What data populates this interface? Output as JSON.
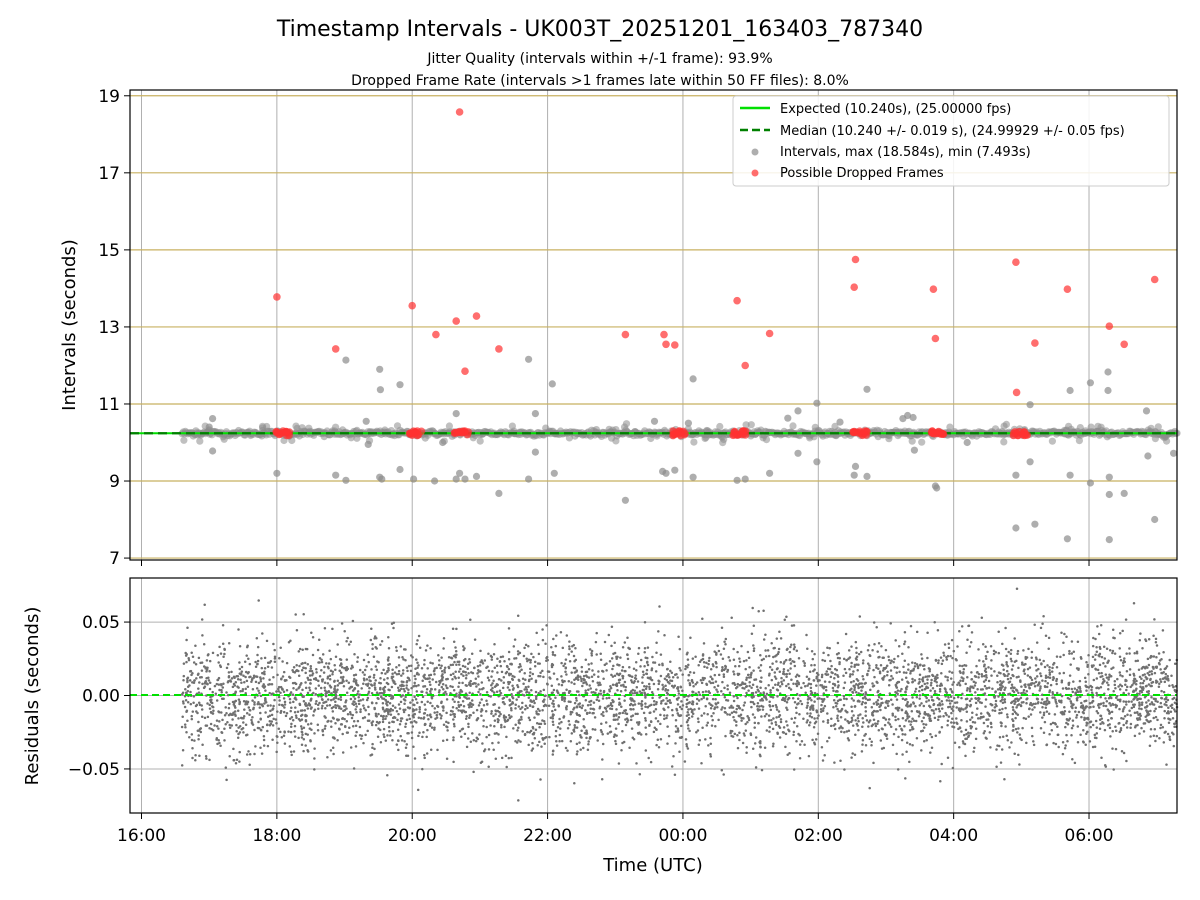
{
  "chart_data": [
    {
      "type": "scatter",
      "panel": "top",
      "title": "Timestamp Intervals - UK003T_20251201_163403_787340",
      "subtitle_lines": [
        "Jitter Quality (intervals within +/-1 frame): 93.9%",
        "Dropped Frame Rate (intervals >1 frames late within 50 FF files): 8.0%"
      ],
      "xlabel": "",
      "ylabel": "Intervals (seconds)",
      "xlim_hours": [
        15.83,
        31.3
      ],
      "ylim": [
        6.95,
        19.15
      ],
      "yticks": [
        7,
        9,
        11,
        13,
        15,
        17,
        19
      ],
      "ytick_labels": [
        "7",
        "9",
        "11",
        "13",
        "15",
        "17",
        "19"
      ],
      "grid": true,
      "legend_position": "upper right",
      "legend": [
        {
          "label": "Expected (10.240s), (25.00000 fps)",
          "kind": "line",
          "color": "#00e000",
          "dash": false
        },
        {
          "label": "Median (10.240 +/- 0.019 s), (24.99929 +/- 0.05 fps)",
          "kind": "line",
          "color": "#008000",
          "dash": true
        },
        {
          "label": "Intervals, max (18.584s), min (7.493s)",
          "kind": "point",
          "color": "#808080"
        },
        {
          "label": "Possible Dropped Frames",
          "kind": "point",
          "color": "#ff2020"
        }
      ],
      "expected_value": 10.24,
      "median_value": 10.24,
      "baseline_span_hours": [
        16.6,
        31.3
      ],
      "dropped_clusters_hours": [
        18.08,
        20.07,
        20.72,
        23.95,
        24.85,
        26.62,
        27.75,
        28.98
      ],
      "dropped_points": [
        [
          18.0,
          13.78
        ],
        [
          18.87,
          12.43
        ],
        [
          20.0,
          13.55
        ],
        [
          20.35,
          12.8
        ],
        [
          20.65,
          13.15
        ],
        [
          20.7,
          18.58
        ],
        [
          20.78,
          11.85
        ],
        [
          20.95,
          13.28
        ],
        [
          21.28,
          12.43
        ],
        [
          23.15,
          12.8
        ],
        [
          23.72,
          12.8
        ],
        [
          23.75,
          12.55
        ],
        [
          23.88,
          12.53
        ],
        [
          24.8,
          13.68
        ],
        [
          24.92,
          12.0
        ],
        [
          25.28,
          12.83
        ],
        [
          26.53,
          14.03
        ],
        [
          26.55,
          14.75
        ],
        [
          27.7,
          13.98
        ],
        [
          27.73,
          12.7
        ],
        [
          28.92,
          14.68
        ],
        [
          28.93,
          11.3
        ],
        [
          29.2,
          12.58
        ],
        [
          29.68,
          13.98
        ],
        [
          30.3,
          13.02
        ],
        [
          30.52,
          12.55
        ],
        [
          30.97,
          14.23
        ]
      ],
      "interval_points": [
        [
          17.05,
          10.62
        ],
        [
          17.05,
          9.78
        ],
        [
          17.0,
          10.4
        ],
        [
          18.0,
          9.2
        ],
        [
          18.87,
          9.15
        ],
        [
          19.02,
          12.14
        ],
        [
          19.02,
          9.02
        ],
        [
          19.32,
          10.55
        ],
        [
          19.35,
          9.95
        ],
        [
          19.52,
          11.9
        ],
        [
          19.53,
          11.37
        ],
        [
          19.52,
          9.1
        ],
        [
          19.55,
          9.05
        ],
        [
          19.82,
          11.5
        ],
        [
          19.82,
          9.3
        ],
        [
          20.02,
          9.05
        ],
        [
          20.45,
          10.0
        ],
        [
          20.33,
          9.0
        ],
        [
          20.65,
          9.05
        ],
        [
          20.7,
          9.2
        ],
        [
          20.78,
          9.05
        ],
        [
          20.65,
          10.75
        ],
        [
          20.95,
          9.12
        ],
        [
          21.28,
          8.68
        ],
        [
          21.72,
          12.16
        ],
        [
          21.72,
          9.05
        ],
        [
          21.82,
          10.75
        ],
        [
          21.82,
          9.75
        ],
        [
          22.07,
          11.52
        ],
        [
          22.1,
          9.2
        ],
        [
          23.15,
          8.5
        ],
        [
          23.58,
          10.55
        ],
        [
          23.7,
          9.25
        ],
        [
          23.75,
          9.2
        ],
        [
          23.88,
          9.28
        ],
        [
          24.08,
          10.5
        ],
        [
          24.15,
          11.65
        ],
        [
          24.15,
          9.1
        ],
        [
          24.8,
          9.02
        ],
        [
          24.92,
          9.05
        ],
        [
          25.28,
          9.2
        ],
        [
          25.55,
          10.63
        ],
        [
          25.7,
          10.82
        ],
        [
          25.7,
          9.72
        ],
        [
          25.98,
          11.02
        ],
        [
          25.98,
          9.5
        ],
        [
          26.32,
          10.53
        ],
        [
          26.55,
          9.38
        ],
        [
          26.53,
          9.15
        ],
        [
          26.72,
          11.38
        ],
        [
          26.72,
          9.12
        ],
        [
          27.25,
          10.62
        ],
        [
          27.32,
          10.7
        ],
        [
          27.4,
          10.65
        ],
        [
          27.42,
          9.8
        ],
        [
          27.73,
          8.87
        ],
        [
          27.75,
          8.82
        ],
        [
          28.2,
          10.0
        ],
        [
          28.92,
          7.78
        ],
        [
          28.92,
          9.15
        ],
        [
          29.13,
          10.98
        ],
        [
          29.13,
          9.5
        ],
        [
          29.2,
          7.88
        ],
        [
          29.68,
          7.5
        ],
        [
          29.72,
          11.35
        ],
        [
          29.72,
          9.15
        ],
        [
          30.02,
          11.55
        ],
        [
          30.02,
          8.95
        ],
        [
          30.28,
          11.83
        ],
        [
          30.28,
          11.35
        ],
        [
          30.3,
          9.1
        ],
        [
          30.3,
          8.65
        ],
        [
          30.3,
          7.48
        ],
        [
          30.52,
          8.68
        ],
        [
          30.85,
          10.82
        ],
        [
          30.87,
          9.65
        ],
        [
          30.97,
          8.0
        ],
        [
          31.25,
          9.72
        ]
      ]
    },
    {
      "type": "scatter",
      "panel": "bottom",
      "xlabel": "Time (UTC)",
      "ylabel": "Residuals (seconds)",
      "xlim_hours": [
        15.83,
        31.3
      ],
      "ylim": [
        -0.08,
        0.08
      ],
      "yticks": [
        -0.05,
        0.0,
        0.05
      ],
      "ytick_labels": [
        "−0.05",
        "0.00",
        "0.05"
      ],
      "xticks_hours": [
        16,
        18,
        20,
        22,
        24,
        26,
        28,
        30
      ],
      "xtick_labels": [
        "16:00",
        "18:00",
        "20:00",
        "22:00",
        "00:00",
        "02:00",
        "04:00",
        "06:00"
      ],
      "grid": true,
      "zero_line_color": "#00e000",
      "residual_span_hours": [
        16.6,
        31.3
      ],
      "residual_std": 0.019,
      "residual_point_count": 5200,
      "point_color": "#707070"
    }
  ],
  "colors": {
    "grid_major": "#b0b0b0",
    "grid_horizontal_top": "#c8b060",
    "interval_point": "#8c8c8c",
    "dropped_point": "#ff3030",
    "expected_line": "#00e000",
    "median_line": "#008000",
    "residual_point": "#707070"
  }
}
